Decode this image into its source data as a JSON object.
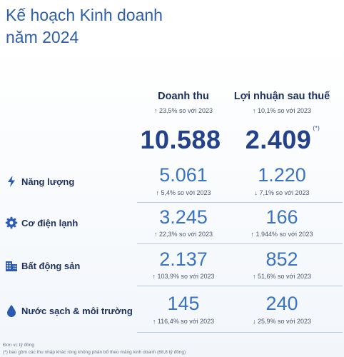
{
  "title_line1": "Kế hoạch Kinh doanh",
  "title_line2": "năm 2024",
  "chart_data": {
    "type": "table",
    "columns": [
      {
        "header": "Doanh thu",
        "change": "↑ 23,5% so với 2023",
        "total": "10.588",
        "total_note": ""
      },
      {
        "header": "Lợi nhuận sau thuế",
        "change": "↑ 10,1% so với 2023",
        "total": "2.409",
        "total_note": "(*)"
      }
    ],
    "rows": [
      {
        "label": "Năng lượng",
        "icon": "lightning-icon",
        "revenue": "5.061",
        "revenue_change": "↑ 5,4% so với 2023",
        "profit": "1.220",
        "profit_change": "↓ 7,1% so với 2023"
      },
      {
        "label": "Cơ điện lạnh",
        "icon": "gear-icon",
        "revenue": "3.245",
        "revenue_change": "↑ 22,3% so với 2023",
        "profit": "166",
        "profit_change": "↑ 1.944% so với 2023"
      },
      {
        "label": "Bất động sản",
        "icon": "building-icon",
        "revenue": "2.137",
        "revenue_change": "↑ 103,9% so với 2023",
        "profit": "852",
        "profit_change": "↑ 51,6% so với 2023"
      },
      {
        "label": "Nước sạch & môi trường",
        "icon": "water-drop-icon",
        "revenue": "145",
        "revenue_change": "↑ 116,4% so với 2023",
        "profit": "240",
        "profit_change": "↓ 25,9% so với 2023"
      }
    ]
  },
  "footnote_unit": "Đơn vị: tỷ đồng",
  "footnote_note": "(*) bao gồm các thu nhập khác ròng không phân bổ theo mảng kinh doanh (68,8 tỷ đồng)",
  "colors": {
    "title": "#2c5fa8",
    "value": "#3a73c2",
    "total": "#24418c",
    "icon": "#2a5bb0"
  }
}
